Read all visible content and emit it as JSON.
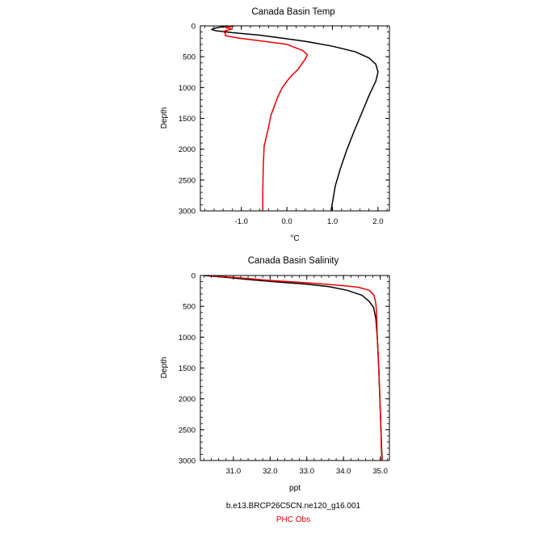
{
  "chart_data": [
    {
      "type": "line",
      "title": "Canada Basin Temp",
      "xlabel": "°C",
      "ylabel": "Depth",
      "xlim": [
        -1.9,
        2.25
      ],
      "ylim": [
        3000,
        0
      ],
      "y_inverted": true,
      "x_ticks": [
        -1.0,
        0.0,
        1.0,
        2.0
      ],
      "x_tick_labels": [
        "-1.0",
        "0.0",
        "1.0",
        "2.0"
      ],
      "y_ticks": [
        0,
        500,
        1000,
        1500,
        2000,
        2500,
        3000
      ],
      "y_tick_labels": [
        "0",
        "500",
        "1000",
        "1500",
        "2000",
        "2500",
        "3000"
      ],
      "grid": false,
      "series": [
        {
          "color": "#000000",
          "points": [
            [
              -1.3,
              0
            ],
            [
              -1.45,
              20
            ],
            [
              -1.6,
              40
            ],
            [
              -1.65,
              60
            ],
            [
              -1.55,
              80
            ],
            [
              -1.2,
              110
            ],
            [
              -0.6,
              150
            ],
            [
              -0.1,
              200
            ],
            [
              0.4,
              250
            ],
            [
              1.0,
              330
            ],
            [
              1.5,
              420
            ],
            [
              1.8,
              520
            ],
            [
              1.95,
              620
            ],
            [
              2.0,
              750
            ],
            [
              1.95,
              900
            ],
            [
              1.82,
              1100
            ],
            [
              1.65,
              1400
            ],
            [
              1.48,
              1700
            ],
            [
              1.32,
              2000
            ],
            [
              1.18,
              2300
            ],
            [
              1.06,
              2600
            ],
            [
              0.97,
              3000
            ]
          ]
        },
        {
          "color": "#e60000",
          "points": [
            [
              -1.15,
              0
            ],
            [
              -1.35,
              30
            ],
            [
              -1.2,
              50
            ],
            [
              -1.3,
              70
            ],
            [
              -1.4,
              90
            ],
            [
              -1.35,
              120
            ],
            [
              -1.35,
              160
            ],
            [
              -1.05,
              200
            ],
            [
              -0.5,
              250
            ],
            [
              0.0,
              300
            ],
            [
              0.35,
              400
            ],
            [
              0.45,
              470
            ],
            [
              0.4,
              540
            ],
            [
              0.25,
              700
            ],
            [
              0.05,
              850
            ],
            [
              -0.1,
              1000
            ],
            [
              -0.2,
              1150
            ],
            [
              -0.35,
              1450
            ],
            [
              -0.42,
              1700
            ],
            [
              -0.5,
              1950
            ],
            [
              -0.52,
              2300
            ],
            [
              -0.53,
              2700
            ],
            [
              -0.53,
              3000
            ]
          ]
        }
      ]
    },
    {
      "type": "line",
      "title": "Canada Basin Salinity",
      "xlabel": "ppt",
      "ylabel": "Depth",
      "xlim": [
        30.1,
        35.25
      ],
      "ylim": [
        3000,
        0
      ],
      "y_inverted": true,
      "x_ticks": [
        31.0,
        32.0,
        33.0,
        34.0,
        35.0
      ],
      "x_tick_labels": [
        "31.0",
        "32.0",
        "33.0",
        "34.0",
        "35.0"
      ],
      "y_ticks": [
        0,
        500,
        1000,
        1500,
        2000,
        2500,
        3000
      ],
      "y_tick_labels": [
        "0",
        "500",
        "1000",
        "1500",
        "2000",
        "2500",
        "3000"
      ],
      "grid": false,
      "series": [
        {
          "color": "#000000",
          "points": [
            [
              30.2,
              0
            ],
            [
              30.8,
              30
            ],
            [
              31.5,
              70
            ],
            [
              32.3,
              110
            ],
            [
              33.0,
              140
            ],
            [
              33.6,
              180
            ],
            [
              34.1,
              240
            ],
            [
              34.5,
              320
            ],
            [
              34.7,
              420
            ],
            [
              34.82,
              520
            ],
            [
              34.88,
              700
            ],
            [
              34.92,
              1000
            ],
            [
              34.96,
              1500
            ],
            [
              34.99,
              2000
            ],
            [
              35.02,
              2500
            ],
            [
              35.05,
              3000
            ]
          ]
        },
        {
          "color": "#e60000",
          "points": [
            [
              30.3,
              0
            ],
            [
              31.2,
              40
            ],
            [
              32.0,
              80
            ],
            [
              32.8,
              110
            ],
            [
              33.5,
              140
            ],
            [
              34.0,
              165
            ],
            [
              34.4,
              190
            ],
            [
              34.7,
              240
            ],
            [
              34.83,
              320
            ],
            [
              34.88,
              450
            ],
            [
              34.9,
              600
            ],
            [
              34.92,
              1000
            ],
            [
              34.96,
              1500
            ],
            [
              34.99,
              2000
            ],
            [
              35.02,
              2500
            ],
            [
              35.04,
              3000
            ]
          ]
        }
      ]
    }
  ],
  "footer": {
    "case_name": "b.e13.BRCP26C5CN.ne120_g16.001",
    "obs_name": "PHC Obs",
    "case_color": "#000000",
    "obs_color": "#e60000"
  }
}
